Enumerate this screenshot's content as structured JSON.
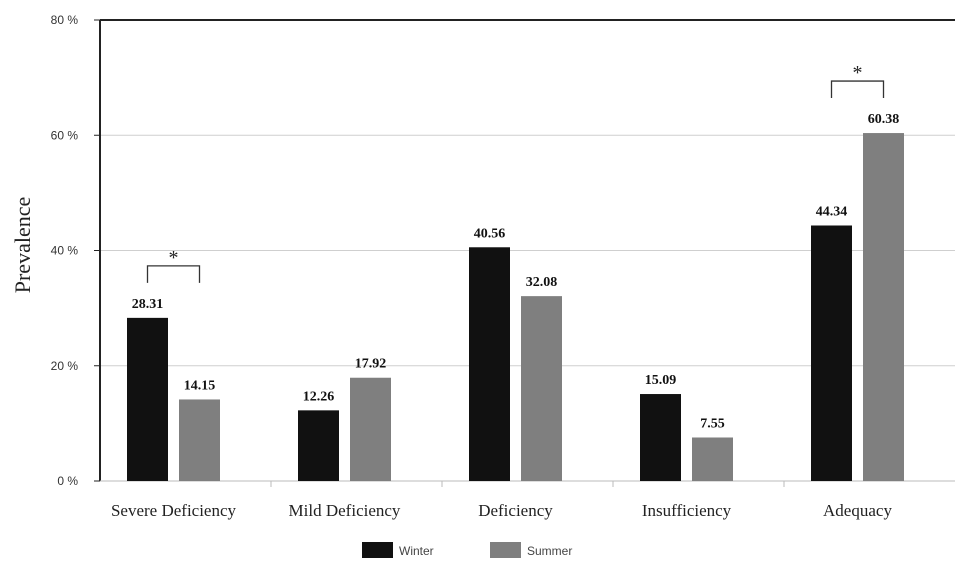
{
  "chart_data": {
    "type": "bar",
    "ylabel": "Prevalence",
    "ylim": [
      0,
      80
    ],
    "yticks": [
      "0 %",
      "20 %",
      "40 %",
      "60 %",
      "80 %"
    ],
    "ytick_values": [
      0,
      20,
      40,
      60,
      80
    ],
    "grid": true,
    "legend_position": "bottom",
    "categories": [
      "Severe Deficiency",
      "Mild Deficiency",
      "Deficiency",
      "Insufficiency",
      "Adequacy"
    ],
    "series": [
      {
        "name": "Winter",
        "color": "#111111",
        "values": [
          28.31,
          12.26,
          40.56,
          15.09,
          44.34
        ],
        "labels": [
          "28.31",
          "12.26",
          "40.56",
          "15.09",
          "44.34"
        ]
      },
      {
        "name": "Summer",
        "color": "#7f7f7f",
        "values": [
          14.15,
          17.92,
          32.08,
          7.55,
          60.38
        ],
        "labels": [
          "14.15",
          "17.92",
          "32.08",
          "7.55",
          "60.38"
        ]
      }
    ],
    "significance": [
      {
        "category_index": 0,
        "label": "*"
      },
      {
        "category_index": 4,
        "label": "*"
      }
    ]
  }
}
